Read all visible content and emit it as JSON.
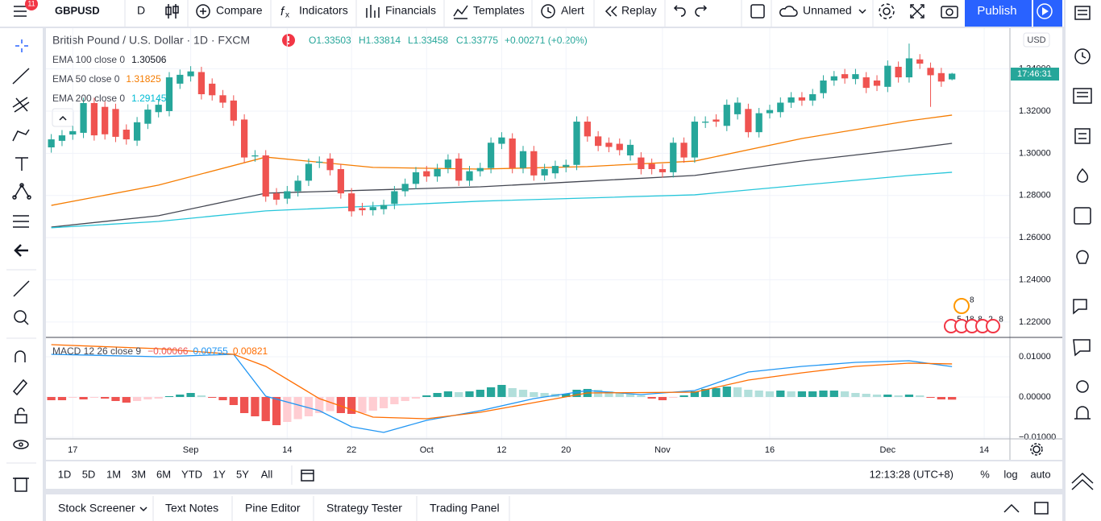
{
  "top_bar": {
    "notifications": "11",
    "symbol": "GBPUSD",
    "interval": "D",
    "buttons": [
      "Compare",
      "Indicators",
      "Financials",
      "Templates",
      "Alert",
      "Replay"
    ],
    "layout_name": "Unnamed",
    "publish": "Publish"
  },
  "legend": {
    "title": "British Pound / U.S. Dollar · 1D · FXCM",
    "ohlc": [
      "O1.33503",
      "H1.33814",
      "L1.33458",
      "C1.33775"
    ],
    "change": "+0.00271 (+0.20%)"
  },
  "chart_data": [
    {
      "type": "candlestick",
      "up_color": "#26a69a",
      "down_color": "#ef5350",
      "grid": true,
      "xlim": [
        -0.5,
        89.4
      ],
      "xticks": [
        {
          "value": 2,
          "label": "17"
        },
        {
          "value": 13,
          "label": "Sep"
        },
        {
          "value": 22,
          "label": "14"
        },
        {
          "value": 28,
          "label": "22"
        },
        {
          "value": 35,
          "label": "Oct"
        },
        {
          "value": 42,
          "label": "12"
        },
        {
          "value": 48,
          "label": "20"
        },
        {
          "value": 57,
          "label": "Nov"
        },
        {
          "value": 67,
          "label": "16"
        },
        {
          "value": 78,
          "label": "Dec"
        },
        {
          "value": 87,
          "label": "14"
        }
      ],
      "ylim": [
        1.2131,
        1.3593
      ],
      "yticks": [
        {
          "value": 1.22,
          "label": "1.22000"
        },
        {
          "value": 1.24,
          "label": "1.24000"
        },
        {
          "value": 1.26,
          "label": "1.26000"
        },
        {
          "value": 1.28,
          "label": "1.28000"
        },
        {
          "value": 1.3,
          "label": "1.30000"
        },
        {
          "value": 1.32,
          "label": "1.32000"
        },
        {
          "value": 1.34,
          "label": "1.34000"
        }
      ],
      "open": [
        1.3028,
        1.3059,
        1.3089,
        1.3097,
        1.3238,
        1.322,
        1.321,
        1.3112,
        1.306,
        1.314,
        1.3195,
        1.32,
        1.333,
        1.3365,
        1.3385,
        1.333,
        1.3275,
        1.325,
        1.316,
        1.2985,
        1.299,
        1.281,
        1.2785,
        1.282,
        1.287,
        1.2955,
        1.2975,
        1.2925,
        1.281,
        1.274,
        1.273,
        1.2735,
        1.276,
        1.282,
        1.2855,
        1.2915,
        1.289,
        1.293,
        1.2975,
        1.287,
        1.2915,
        1.293,
        1.3045,
        1.307,
        1.293,
        1.301,
        1.2895,
        1.2905,
        1.2935,
        1.2945,
        1.315,
        1.308,
        1.305,
        1.3045,
        1.299,
        1.298,
        1.295,
        1.2925,
        1.291,
        1.305,
        1.298,
        1.3145,
        1.316,
        1.313,
        1.3185,
        1.321,
        1.31,
        1.319,
        1.3195,
        1.324,
        1.3265,
        1.325,
        1.3285,
        1.3345,
        1.3375,
        1.3352,
        1.336,
        1.3345,
        1.3315,
        1.341,
        1.336,
        1.3445,
        1.3405,
        1.338,
        1.33503
      ],
      "high": [
        1.3091,
        1.311,
        1.313,
        1.3263,
        1.3263,
        1.3245,
        1.3235,
        1.3137,
        1.3172,
        1.3232,
        1.3255,
        1.3385,
        1.3397,
        1.3413,
        1.341,
        1.3355,
        1.33,
        1.3275,
        1.3185,
        1.3015,
        1.3015,
        1.2835,
        1.2845,
        1.2895,
        1.2975,
        1.2985,
        1.3,
        1.295,
        1.2835,
        1.2765,
        1.277,
        1.278,
        1.2845,
        1.288,
        1.2935,
        1.294,
        1.295,
        1.2995,
        1.3,
        1.294,
        1.2955,
        1.3075,
        1.31,
        1.3095,
        1.3035,
        1.3035,
        1.295,
        1.2965,
        1.297,
        1.3175,
        1.3175,
        1.3105,
        1.3075,
        1.307,
        1.3065,
        1.3005,
        1.2975,
        1.295,
        1.3075,
        1.3075,
        1.3175,
        1.3175,
        1.3185,
        1.3255,
        1.3265,
        1.3235,
        1.3215,
        1.323,
        1.3265,
        1.329,
        1.329,
        1.3305,
        1.337,
        1.339,
        1.34,
        1.34,
        1.3385,
        1.337,
        1.344,
        1.3435,
        1.352,
        1.347,
        1.343,
        1.3405,
        1.33814
      ],
      "low": [
        1.3003,
        1.3034,
        1.3064,
        1.3072,
        1.306,
        1.3065,
        1.3053,
        1.3041,
        1.3035,
        1.3115,
        1.317,
        1.3175,
        1.3305,
        1.334,
        1.3255,
        1.325,
        1.3215,
        1.313,
        1.2955,
        1.296,
        1.277,
        1.2755,
        1.276,
        1.2795,
        1.2845,
        1.293,
        1.2895,
        1.2785,
        1.27,
        1.2705,
        1.2705,
        1.271,
        1.2735,
        1.2795,
        1.283,
        1.2865,
        1.2865,
        1.2905,
        1.2845,
        1.2845,
        1.289,
        1.2905,
        1.302,
        1.2905,
        1.2905,
        1.287,
        1.287,
        1.288,
        1.291,
        1.292,
        1.3055,
        1.301,
        1.3005,
        1.299,
        1.2965,
        1.29,
        1.29,
        1.2885,
        1.2885,
        1.2955,
        1.2955,
        1.312,
        1.3125,
        1.3105,
        1.316,
        1.3075,
        1.3075,
        1.3165,
        1.317,
        1.3215,
        1.3225,
        1.3225,
        1.326,
        1.332,
        1.333,
        1.3327,
        1.3285,
        1.3295,
        1.329,
        1.3335,
        1.3335,
        1.34,
        1.322,
        1.3315,
        1.33458
      ],
      "close": [
        1.3066,
        1.3085,
        1.3105,
        1.3238,
        1.3085,
        1.309,
        1.3078,
        1.3066,
        1.3147,
        1.3207,
        1.323,
        1.336,
        1.3372,
        1.3388,
        1.328,
        1.3275,
        1.324,
        1.3155,
        1.298,
        1.299,
        1.2795,
        1.278,
        1.282,
        1.287,
        1.295,
        1.296,
        1.292,
        1.281,
        1.2725,
        1.273,
        1.2745,
        1.2755,
        1.282,
        1.2855,
        1.291,
        1.289,
        1.2925,
        1.297,
        1.287,
        1.2915,
        1.293,
        1.305,
        1.3075,
        1.293,
        1.301,
        1.2895,
        1.2925,
        1.294,
        1.2945,
        1.315,
        1.308,
        1.3035,
        1.303,
        1.3015,
        1.304,
        1.2925,
        1.2925,
        1.291,
        1.305,
        1.298,
        1.315,
        1.315,
        1.315,
        1.323,
        1.324,
        1.31,
        1.319,
        1.3205,
        1.324,
        1.3265,
        1.325,
        1.328,
        1.3345,
        1.3365,
        1.3355,
        1.3375,
        1.331,
        1.332,
        1.3415,
        1.336,
        1.345,
        1.3425,
        1.337,
        1.334,
        1.33775
      ],
      "series": [
        {
          "name": "EMA 100 close 0",
          "value_label": "1.30506",
          "color": "#434651",
          "label_color": "#131722",
          "x": [
            0,
            10,
            20,
            30,
            40,
            50,
            60,
            70,
            80,
            84
          ],
          "values": [
            1.265,
            1.2704,
            1.2811,
            1.2826,
            1.2841,
            1.2868,
            1.2895,
            1.2963,
            1.3021,
            1.3047
          ]
        },
        {
          "name": "EMA 50 close 0",
          "value_label": "1.31825",
          "color": "#f57c00",
          "label_color": "#f57c00",
          "x": [
            0,
            10,
            20,
            30,
            40,
            50,
            60,
            70,
            80,
            84
          ],
          "values": [
            1.2753,
            1.2849,
            1.2982,
            1.2933,
            1.2925,
            1.2937,
            1.2963,
            1.307,
            1.3154,
            1.3181
          ]
        },
        {
          "name": "EMA 200 close 0",
          "value_label": "1.29145",
          "color": "#26c6da",
          "label_color": "#00bcd4",
          "x": [
            0,
            10,
            20,
            30,
            40,
            50,
            60,
            70,
            80,
            84
          ],
          "values": [
            1.2647,
            1.2677,
            1.2727,
            1.275,
            1.2773,
            1.2788,
            1.2803,
            1.2849,
            1.2895,
            1.291
          ]
        }
      ]
    },
    {
      "type": "macd",
      "name": "MACD 12 26 close 9",
      "ylim": [
        -0.0104,
        0.0146
      ],
      "yticks": [
        {
          "value": 0.01,
          "label": "0.01000"
        },
        {
          "value": 0,
          "label": "0.00000"
        },
        {
          "value": -0.01,
          "label": "−0.01000"
        }
      ],
      "histogram": {
        "value_label": "−0.00066",
        "colors": {
          "positive_rising": "#26a69a",
          "positive_falling": "#b2dfdb",
          "negative_falling": "#ef5350",
          "negative_rising": "#ffcdd2"
        },
        "values": [
          -0.0008,
          -0.0008,
          -0.0002,
          -0.0006,
          -0.0002,
          -0.0004,
          -0.001,
          -0.0014,
          -0.001,
          -0.0006,
          -0.0004,
          0.0002,
          0.0006,
          0.001,
          0.0004,
          -0.0002,
          -0.0008,
          -0.002,
          -0.004,
          -0.0048,
          -0.006,
          -0.007,
          -0.0062,
          -0.0055,
          -0.0048,
          -0.004,
          -0.0035,
          -0.004,
          -0.0042,
          -0.004,
          -0.0034,
          -0.0028,
          -0.0018,
          -0.001,
          -0.0004,
          0.0004,
          0.001,
          0.0014,
          0.0012,
          0.0014,
          0.0018,
          0.0024,
          0.003,
          0.0022,
          0.0018,
          0.0012,
          0.001,
          0.0008,
          0.0008,
          0.0018,
          0.002,
          0.0018,
          0.0014,
          0.001,
          0.0008,
          0.0004,
          -0.0004,
          -0.0008,
          -0.0002,
          0.0004,
          0.0014,
          0.002,
          0.0022,
          0.0026,
          0.0024,
          0.0018,
          0.0016,
          0.0014,
          0.0016,
          0.0014,
          0.0014,
          0.0014,
          0.0016,
          0.0016,
          0.0014,
          0.001,
          0.0008,
          0.0006,
          0.0006,
          0.0004,
          0.0006,
          0.0004,
          -0.0002,
          -0.0006,
          -0.00066
        ]
      },
      "series": [
        {
          "value_label": "0.00755",
          "color": "#2196f3",
          "x": [
            0,
            10,
            17,
            20,
            25,
            28,
            31,
            35,
            40,
            45,
            50,
            55,
            60,
            65,
            70,
            75,
            80,
            84
          ],
          "values": [
            0.0106,
            0.01,
            0.0106,
            0.0002,
            -0.0034,
            -0.0074,
            -0.0088,
            -0.0058,
            -0.0034,
            -0.0004,
            0.0016,
            0.0006,
            0.0016,
            0.0062,
            0.0076,
            0.0086,
            0.009,
            0.00755
          ]
        },
        {
          "value_label": "0.00821",
          "color": "#ff6d00",
          "x": [
            0,
            10,
            17,
            20,
            25,
            30,
            35,
            40,
            45,
            50,
            60,
            65,
            70,
            75,
            80,
            84
          ],
          "values": [
            0.013,
            0.012,
            0.0106,
            0.0076,
            -0.0004,
            -0.005,
            -0.0054,
            -0.0038,
            -0.0014,
            0.001,
            0.0012,
            0.0042,
            0.006,
            0.0076,
            0.0084,
            0.00821
          ]
        }
      ]
    }
  ],
  "price_axis": {
    "currency": "USD",
    "countdown": "17:46:31"
  },
  "events": {
    "top": "8",
    "row": [
      "5",
      "18",
      "8",
      "2",
      "8"
    ]
  },
  "bottom_bar": {
    "ranges": [
      "1D",
      "5D",
      "1M",
      "3M",
      "6M",
      "YTD",
      "1Y",
      "5Y",
      "All"
    ],
    "clock": "12:13:28 (UTC+8)",
    "options": [
      "%",
      "log",
      "auto"
    ]
  },
  "tabs": [
    "Stock Screener",
    "Text Notes",
    "Pine Editor",
    "Strategy Tester",
    "Trading Panel"
  ]
}
